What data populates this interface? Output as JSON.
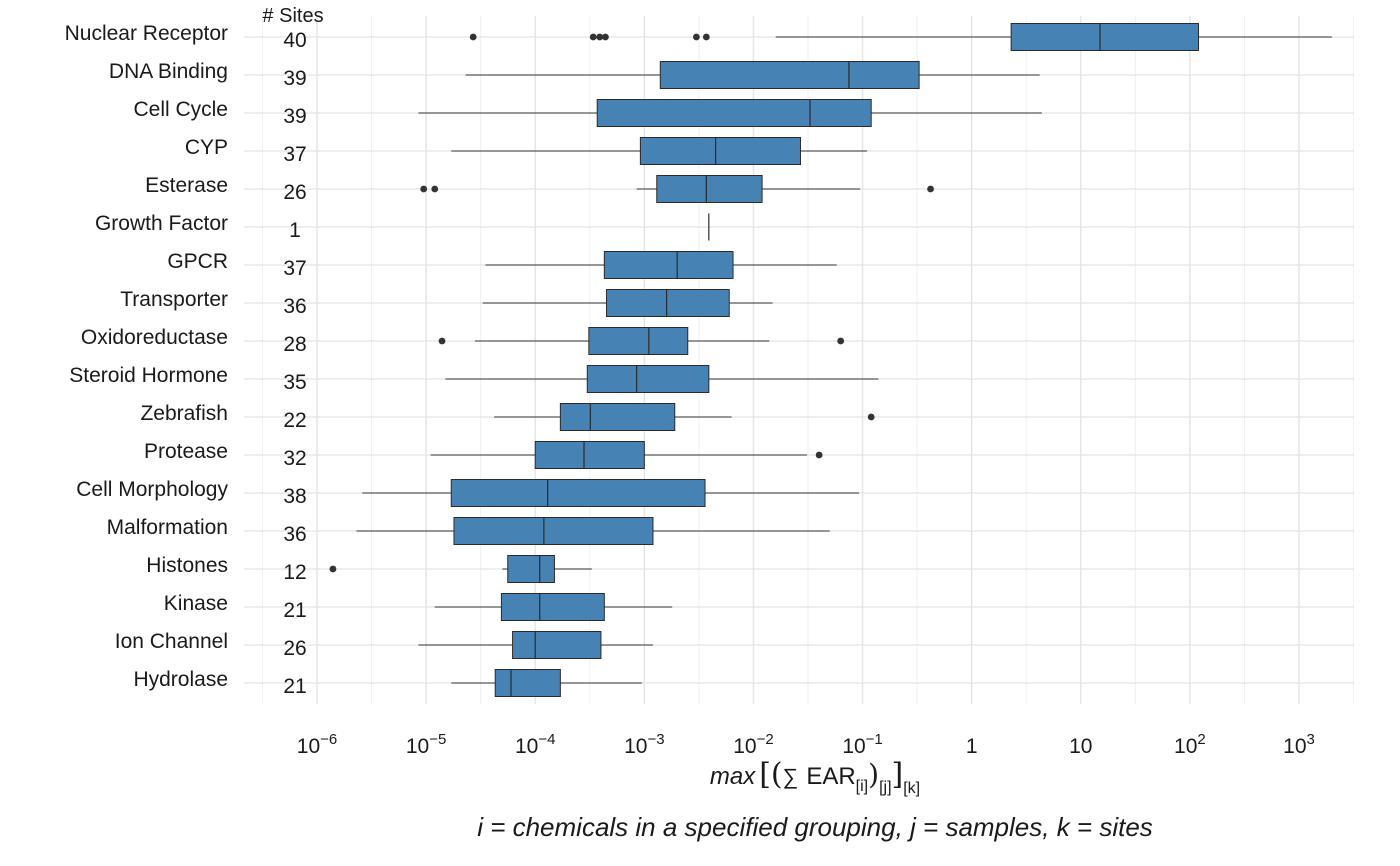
{
  "chart_data": {
    "type": "boxplot",
    "orientation": "horizontal",
    "x_scale": "log10",
    "xlim": [
      4e-07,
      4000
    ],
    "grid": true,
    "sites_header": "# Sites",
    "x_ticks": [
      {
        "value": 1e-06,
        "base": "10",
        "exp": "−6"
      },
      {
        "value": 1e-05,
        "base": "10",
        "exp": "−5"
      },
      {
        "value": 0.0001,
        "base": "10",
        "exp": "−4"
      },
      {
        "value": 0.001,
        "base": "10",
        "exp": "−3"
      },
      {
        "value": 0.01,
        "base": "10",
        "exp": "−2"
      },
      {
        "value": 0.1,
        "base": "10",
        "exp": "−1"
      },
      {
        "value": 1,
        "base": "1",
        "exp": ""
      },
      {
        "value": 10,
        "base": "10",
        "exp": ""
      },
      {
        "value": 100,
        "base": "10",
        "exp": "2"
      },
      {
        "value": 1000,
        "base": "10",
        "exp": "3"
      }
    ],
    "xlabel": {
      "fn": "max",
      "open_bracket": "[(",
      "sigma": "∑",
      "ear": "EAR",
      "sub_i": "[i]",
      "close_paren": ")",
      "sub_j": "[j]",
      "close_bracket": "]",
      "sub_k": "[k]"
    },
    "categories": [
      "Nuclear Receptor",
      "DNA Binding",
      "Cell Cycle",
      "CYP",
      "Esterase",
      "Growth Factor",
      "GPCR",
      "Transporter",
      "Oxidoreductase",
      "Steroid Hormone",
      "Zebrafish",
      "Protease",
      "Cell Morphology",
      "Malformation",
      "Histones",
      "Kinase",
      "Ion Channel",
      "Hydrolase"
    ],
    "sites": [
      "40",
      "39",
      "39",
      "37",
      "26",
      "1",
      "37",
      "36",
      "28",
      "35",
      "22",
      "32",
      "38",
      "36",
      "12",
      "21",
      "26",
      "21"
    ],
    "series": [
      {
        "category": "Nuclear Receptor",
        "whisker_low": 0.016,
        "q1": 2.3,
        "median": 15,
        "q3": 120,
        "whisker_high": 2000,
        "outliers": [
          2.7e-05,
          0.00034,
          0.00039,
          0.00044,
          0.003,
          0.0037
        ]
      },
      {
        "category": "DNA Binding",
        "whisker_low": 2.3e-05,
        "q1": 0.0014,
        "median": 0.075,
        "q3": 0.33,
        "whisker_high": 4.2,
        "outliers": []
      },
      {
        "category": "Cell Cycle",
        "whisker_low": 8.5e-06,
        "q1": 0.00037,
        "median": 0.033,
        "q3": 0.12,
        "whisker_high": 4.4,
        "outliers": []
      },
      {
        "category": "CYP",
        "whisker_low": 1.7e-05,
        "q1": 0.00092,
        "median": 0.0045,
        "q3": 0.027,
        "whisker_high": 0.11,
        "outliers": []
      },
      {
        "category": "Esterase",
        "whisker_low": 0.00085,
        "q1": 0.0013,
        "median": 0.0037,
        "q3": 0.012,
        "whisker_high": 0.095,
        "outliers": [
          9.5e-06,
          1.2e-05,
          0.42
        ]
      },
      {
        "category": "Growth Factor",
        "whisker_low": 0.0039,
        "q1": 0.0039,
        "median": 0.0039,
        "q3": 0.0039,
        "whisker_high": 0.0039,
        "outliers": []
      },
      {
        "category": "GPCR",
        "whisker_low": 3.5e-05,
        "q1": 0.00043,
        "median": 0.002,
        "q3": 0.0065,
        "whisker_high": 0.058,
        "outliers": []
      },
      {
        "category": "Transporter",
        "whisker_low": 3.3e-05,
        "q1": 0.00045,
        "median": 0.0016,
        "q3": 0.006,
        "whisker_high": 0.015,
        "outliers": []
      },
      {
        "category": "Oxidoreductase",
        "whisker_low": 2.8e-05,
        "q1": 0.00031,
        "median": 0.0011,
        "q3": 0.0025,
        "whisker_high": 0.014,
        "outliers": [
          1.4e-05,
          0.063
        ]
      },
      {
        "category": "Steroid Hormone",
        "whisker_low": 1.5e-05,
        "q1": 0.0003,
        "median": 0.00085,
        "q3": 0.0039,
        "whisker_high": 0.14,
        "outliers": []
      },
      {
        "category": "Zebrafish",
        "whisker_low": 4.2e-05,
        "q1": 0.00017,
        "median": 0.00032,
        "q3": 0.0019,
        "whisker_high": 0.0063,
        "outliers": [
          0.12
        ]
      },
      {
        "category": "Protease",
        "whisker_low": 1.1e-05,
        "q1": 0.0001,
        "median": 0.00028,
        "q3": 0.001,
        "whisker_high": 0.031,
        "outliers": [
          0.04
        ]
      },
      {
        "category": "Cell Morphology",
        "whisker_low": 2.6e-06,
        "q1": 1.7e-05,
        "median": 0.00013,
        "q3": 0.0036,
        "whisker_high": 0.093,
        "outliers": []
      },
      {
        "category": "Malformation",
        "whisker_low": 2.3e-06,
        "q1": 1.8e-05,
        "median": 0.00012,
        "q3": 0.0012,
        "whisker_high": 0.05,
        "outliers": []
      },
      {
        "category": "Histones",
        "whisker_low": 5e-05,
        "q1": 5.6e-05,
        "median": 0.00011,
        "q3": 0.00015,
        "whisker_high": 0.00033,
        "outliers": [
          1.4e-06
        ]
      },
      {
        "category": "Kinase",
        "whisker_low": 1.2e-05,
        "q1": 4.9e-05,
        "median": 0.00011,
        "q3": 0.00043,
        "whisker_high": 0.0018,
        "outliers": []
      },
      {
        "category": "Ion Channel",
        "whisker_low": 8.5e-06,
        "q1": 6.2e-05,
        "median": 0.0001,
        "q3": 0.0004,
        "whisker_high": 0.0012,
        "outliers": []
      },
      {
        "category": "Hydrolase",
        "whisker_low": 1.7e-05,
        "q1": 4.3e-05,
        "median": 6e-05,
        "q3": 0.00017,
        "whisker_high": 0.00095,
        "outliers": []
      }
    ],
    "colors": {
      "box_fill": "#4682B4",
      "box_stroke": "#2b2b2b",
      "whisker": "#333333",
      "outlier": "#333333",
      "grid_major": "#e4e4e4",
      "grid_minor": "#efefef"
    }
  },
  "caption": "i = chemicals in a specified grouping, j = samples, k = sites"
}
